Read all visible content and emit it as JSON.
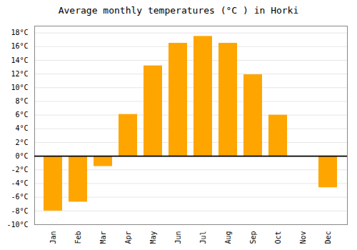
{
  "chart_data": {
    "type": "bar",
    "title": "Average monthly temperatures (°C ) in Horki",
    "categories": [
      "Jan",
      "Feb",
      "Mar",
      "Apr",
      "May",
      "Jun",
      "Jul",
      "Aug",
      "Sep",
      "Oct",
      "Nov",
      "Dec"
    ],
    "values": [
      -8.0,
      -6.7,
      -1.5,
      6.1,
      13.2,
      16.5,
      17.5,
      16.5,
      11.9,
      6.0,
      0.0,
      -4.6
    ],
    "color": "#FFA500",
    "ylim": [
      -10,
      19
    ],
    "yticks": [
      {
        "value": -10,
        "label": "-10°C"
      },
      {
        "value": -8,
        "label": "-8°C"
      },
      {
        "value": -6,
        "label": "-6°C"
      },
      {
        "value": -4,
        "label": "-4°C"
      },
      {
        "value": -2,
        "label": "-2°C"
      },
      {
        "value": 0,
        "label": "0°C"
      },
      {
        "value": 2,
        "label": "2°C"
      },
      {
        "value": 4,
        "label": "4°C"
      },
      {
        "value": 6,
        "label": "6°C"
      },
      {
        "value": 8,
        "label": "8°C"
      },
      {
        "value": 10,
        "label": "10°C"
      },
      {
        "value": 12,
        "label": "12°C"
      },
      {
        "value": 14,
        "label": "14°C"
      },
      {
        "value": 16,
        "label": "16°C"
      },
      {
        "value": 18,
        "label": "18°C"
      }
    ],
    "grid": true
  }
}
